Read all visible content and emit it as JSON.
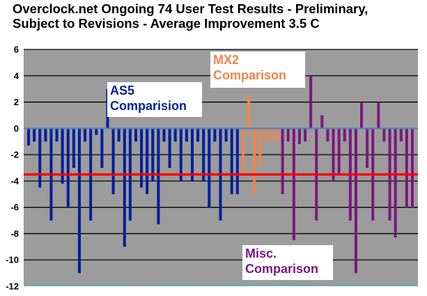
{
  "chart_data": {
    "type": "bar",
    "title_lines": [
      "Overclock.net Ongoing 74 User Test Results - Preliminary,",
      "Subject to Revisions - Average Improvement 3.5 C"
    ],
    "xlabel": "",
    "ylabel": "",
    "ylim": [
      -12,
      6
    ],
    "yticks": [
      6,
      4,
      2,
      0,
      -2,
      -4,
      -6,
      -8,
      -10,
      -12
    ],
    "grid": true,
    "background_color": "#9c9c9c",
    "gridline_color": "#000000",
    "zero_line_color": "#4f81bd",
    "average": {
      "value": -3.5,
      "color": "#ff0000"
    },
    "series": [
      {
        "group": "as5",
        "color": "#001f9c",
        "values": [
          -1.3,
          -1,
          -4.5,
          -1,
          -7,
          -1,
          -4.2,
          -6,
          -3,
          -11,
          -1,
          -7,
          -0.5,
          -3,
          3,
          -5,
          -1,
          -9,
          -7,
          -1,
          -4.5,
          -5,
          -4,
          -7.3,
          -1,
          -3,
          -1,
          -4,
          -1,
          -4,
          -1,
          -4,
          -6,
          -1,
          -7,
          -1,
          -5,
          -5
        ]
      },
      {
        "group": "mx2",
        "color": "#f2834a",
        "values": [
          -3.5,
          2.5,
          -5,
          -2.8,
          -1,
          -1,
          -1
        ]
      },
      {
        "group": "misc",
        "color": "#7b187e",
        "values": [
          -5,
          -1,
          -8.5,
          -1.2,
          -1,
          4,
          -7,
          1,
          -1,
          -4,
          -3.5,
          -1,
          -7,
          -11,
          2,
          -3,
          -7,
          2,
          -1,
          -7,
          -8.3,
          -1,
          -6,
          -6
        ]
      }
    ],
    "annotations": [
      {
        "text_lines": [
          "AS5",
          "Comparision"
        ],
        "color": "#001f9c",
        "group": "as5"
      },
      {
        "text_lines": [
          "MX2",
          "Comparison"
        ],
        "color": "#f2834a",
        "group": "mx2"
      },
      {
        "text_lines": [
          "Misc.",
          "Comparison"
        ],
        "color": "#7b187e",
        "group": "misc"
      }
    ]
  }
}
